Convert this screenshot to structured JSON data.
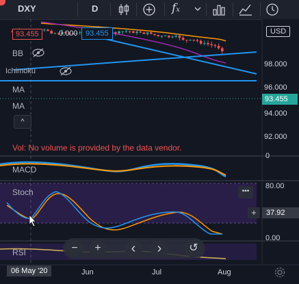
{
  "toolbar": {
    "symbol": "DXY",
    "interval": "D",
    "candle_icon": "candlestick-icon",
    "add_icon": "plus-circle-icon",
    "fx_label": "f",
    "fx_sub": "x",
    "bars_icon": "bar-chart-icon",
    "compare_icon": "chart-compare-icon",
    "replay_icon": "replay-icon"
  },
  "price": {
    "current_label": "93.455",
    "current_label_right": "93.455",
    "change_label": "0.000",
    "mid_label": "93.455",
    "currency": "USD"
  },
  "indicators": {
    "bb": "BB",
    "ichimoku": "Ichimoku",
    "ma1": "MA",
    "ma2": "MA",
    "volume_notice": "Vol: No volume is provided by the data vendor.",
    "macd": "MACD",
    "stoch": "Stoch",
    "rsi": "RSI"
  },
  "axis": {
    "price_ticks": [
      "98.000",
      "96.000",
      "94.000",
      "92.000"
    ],
    "macd_zero": "0",
    "stoch_ticks": [
      "80.00",
      "0.00"
    ],
    "stoch_value": "37.92",
    "time_labels": [
      "06 May '20",
      "Jun",
      "Jul",
      "Aug"
    ]
  },
  "colors": {
    "up": "#26a69a",
    "down": "#ef5350",
    "price_box": "#26a69a",
    "trendline": "#2196f3",
    "ma_orange": "#ff9800",
    "ma_purple": "#9c27b0",
    "stoch_bg": "#2a1f4a"
  },
  "controls": {
    "minus": "−",
    "plus": "+",
    "left": "‹",
    "right": "›",
    "reset": "↺",
    "more": "•••",
    "collapse": "^"
  }
}
